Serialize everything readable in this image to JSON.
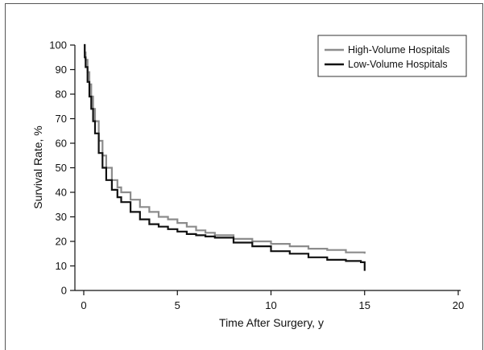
{
  "chart_data": {
    "type": "line",
    "xlabel": "Time After Surgery, y",
    "ylabel": "Survival Rate, %",
    "xlim": [
      0,
      20
    ],
    "ylim": [
      0,
      100
    ],
    "xticks": [
      0,
      5,
      10,
      15,
      20
    ],
    "yticks": [
      0,
      10,
      20,
      30,
      40,
      50,
      60,
      70,
      80,
      90,
      100
    ],
    "grid": false,
    "legend_position": "top-right",
    "step": true,
    "series": [
      {
        "name": "High-Volume Hospitals",
        "color": "#8c8c8c",
        "x": [
          0,
          0.05,
          0.1,
          0.2,
          0.3,
          0.4,
          0.5,
          0.6,
          0.8,
          1.0,
          1.2,
          1.5,
          1.8,
          2.0,
          2.5,
          3.0,
          3.5,
          4.0,
          4.5,
          5.0,
          5.5,
          6.0,
          6.5,
          7.0,
          8.0,
          9.0,
          10.0,
          11.0,
          12.0,
          13.0,
          14.0,
          15.0
        ],
        "values": [
          100,
          97,
          94,
          89,
          84,
          79,
          74,
          69,
          61,
          55,
          50,
          45,
          42,
          40,
          37,
          34,
          32,
          30,
          29,
          27.5,
          26,
          24.5,
          23.5,
          22.5,
          21,
          20,
          19,
          18,
          17,
          16.5,
          15.5,
          15
        ]
      },
      {
        "name": "Low-Volume Hospitals",
        "color": "#111111",
        "x": [
          0,
          0.05,
          0.1,
          0.2,
          0.3,
          0.4,
          0.5,
          0.6,
          0.8,
          1.0,
          1.2,
          1.5,
          1.8,
          2.0,
          2.5,
          3.0,
          3.5,
          4.0,
          4.5,
          5.0,
          5.5,
          6.0,
          6.5,
          7.0,
          8.0,
          9.0,
          10.0,
          11.0,
          12.0,
          13.0,
          14.0,
          14.8,
          15.0
        ],
        "values": [
          100,
          95,
          91,
          85,
          79,
          74,
          69,
          64,
          56,
          50,
          45,
          41,
          38,
          36,
          32,
          29,
          27,
          26,
          25,
          24,
          23,
          22.5,
          22,
          21.5,
          19.5,
          18,
          16,
          15,
          13.5,
          12.5,
          12,
          11.5,
          8
        ]
      }
    ]
  }
}
